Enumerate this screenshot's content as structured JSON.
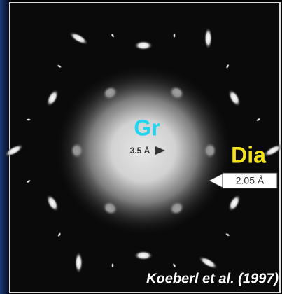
{
  "labels": {
    "graphite": "Gr",
    "graphite_spacing": "3.5 Å",
    "diamond": "Dia",
    "diamond_spacing": "2.05 Å",
    "credit": "Koeberl et al. (1997)"
  }
}
